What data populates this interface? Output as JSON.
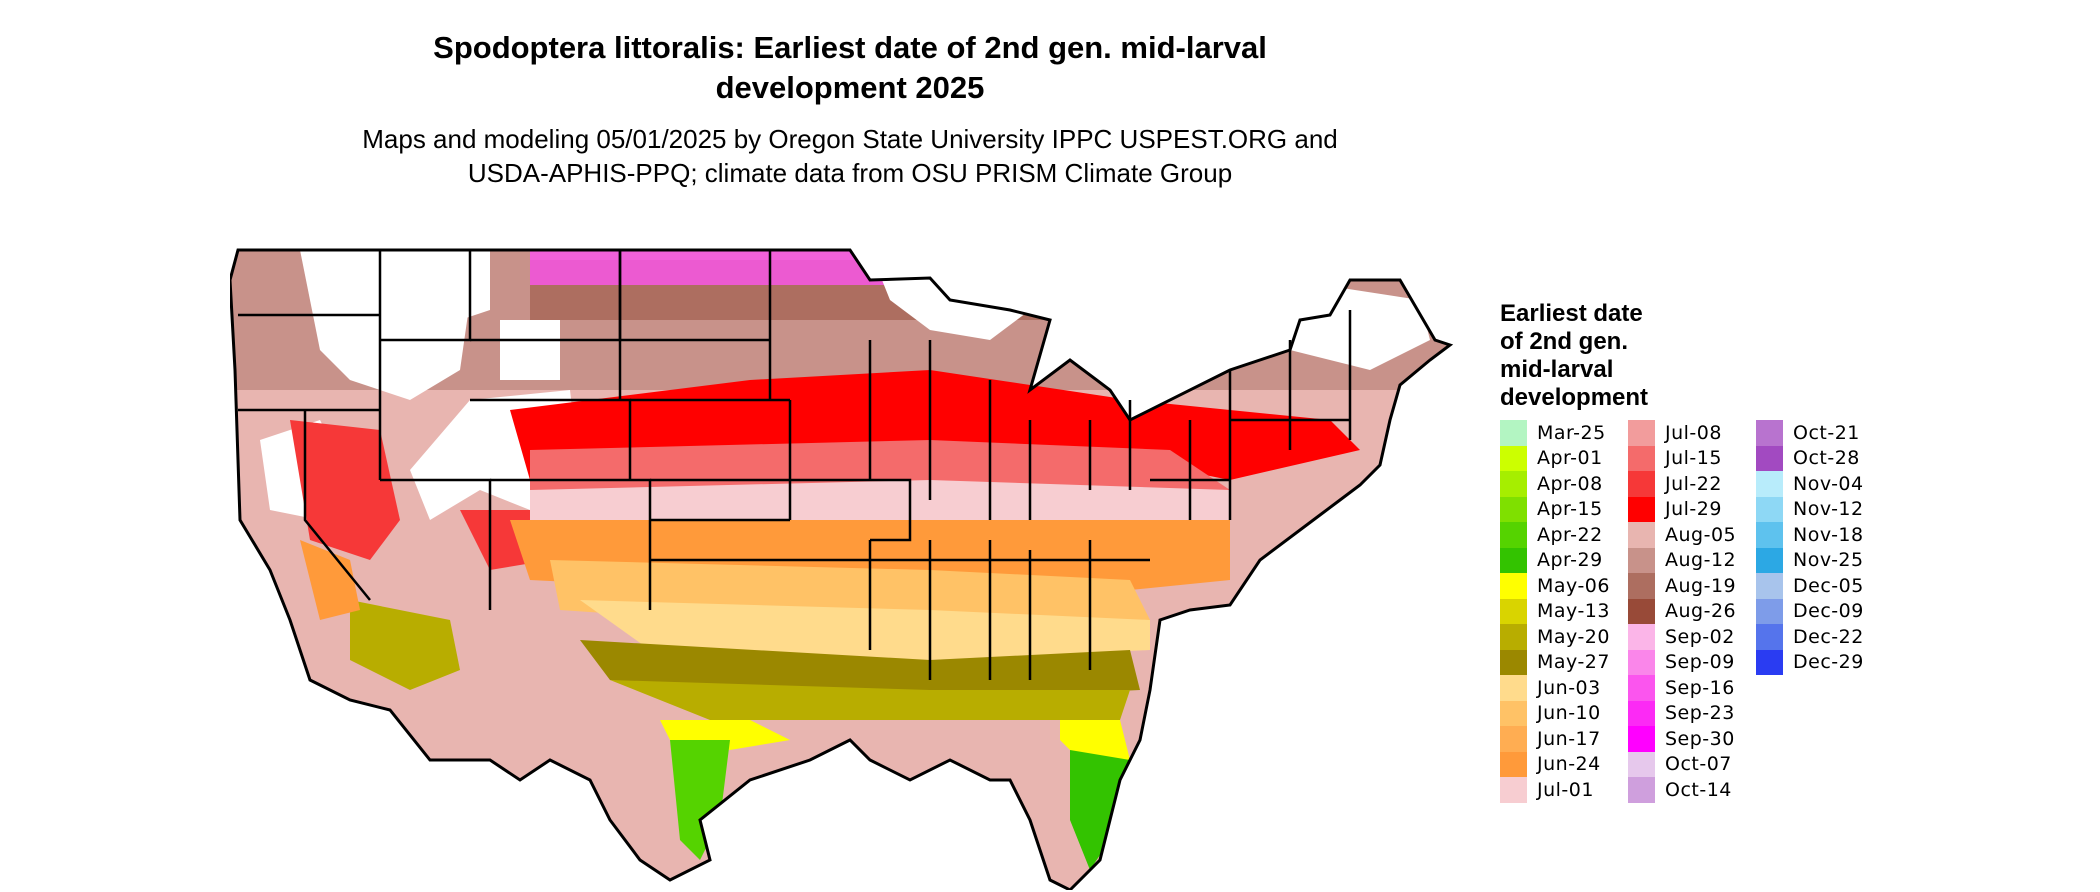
{
  "title": "Spodoptera littoralis: Earliest date of 2nd gen. mid-larval\ndevelopment 2025",
  "subtitle": "Maps and modeling 05/01/2025 by Oregon State University IPPC USPEST.ORG and\nUSDA-APHIS-PPQ; climate data from OSU PRISM Climate Group",
  "legend": {
    "title": "Earliest date\nof 2nd gen.\nmid-larval\ndevelopment",
    "items": [
      {
        "label": "Mar-25",
        "color": "#b3f5c2"
      },
      {
        "label": "Apr-01",
        "color": "#ccff00"
      },
      {
        "label": "Apr-08",
        "color": "#a6ee00"
      },
      {
        "label": "Apr-15",
        "color": "#7fe000"
      },
      {
        "label": "Apr-22",
        "color": "#55d300"
      },
      {
        "label": "Apr-29",
        "color": "#33c300"
      },
      {
        "label": "May-06",
        "color": "#ffff00"
      },
      {
        "label": "May-13",
        "color": "#d9d400"
      },
      {
        "label": "May-20",
        "color": "#b8ad00"
      },
      {
        "label": "May-27",
        "color": "#9b8800"
      },
      {
        "label": "Jun-03",
        "color": "#ffdb8c"
      },
      {
        "label": "Jun-10",
        "color": "#ffc266"
      },
      {
        "label": "Jun-17",
        "color": "#ffad52"
      },
      {
        "label": "Jun-24",
        "color": "#ff9a3a"
      },
      {
        "label": "Jul-01",
        "color": "#f7cdd1"
      },
      {
        "label": "Jul-08",
        "color": "#f29c9c"
      },
      {
        "label": "Jul-15",
        "color": "#f46b6b"
      },
      {
        "label": "Jul-22",
        "color": "#f63838"
      },
      {
        "label": "Jul-29",
        "color": "#ff0000"
      },
      {
        "label": "Aug-05",
        "color": "#e8b5b0"
      },
      {
        "label": "Aug-12",
        "color": "#c8928a"
      },
      {
        "label": "Aug-19",
        "color": "#ad6e60"
      },
      {
        "label": "Aug-26",
        "color": "#984a38"
      },
      {
        "label": "Sep-02",
        "color": "#fbb5e8"
      },
      {
        "label": "Sep-09",
        "color": "#fa86ea"
      },
      {
        "label": "Sep-16",
        "color": "#fb55ee"
      },
      {
        "label": "Sep-23",
        "color": "#fc2af5"
      },
      {
        "label": "Sep-30",
        "color": "#ff00ff"
      },
      {
        "label": "Oct-07",
        "color": "#e6c8ec"
      },
      {
        "label": "Oct-14",
        "color": "#cf9fdd"
      },
      {
        "label": "Oct-21",
        "color": "#b873cf"
      },
      {
        "label": "Oct-28",
        "color": "#a24ac1"
      },
      {
        "label": "Nov-04",
        "color": "#b8ecfb"
      },
      {
        "label": "Nov-12",
        "color": "#8ed8f5"
      },
      {
        "label": "Nov-18",
        "color": "#5ec2ee"
      },
      {
        "label": "Nov-25",
        "color": "#2ca8e4"
      },
      {
        "label": "Dec-05",
        "color": "#a8c4ec"
      },
      {
        "label": "Dec-09",
        "color": "#7e9ce9"
      },
      {
        "label": "Dec-22",
        "color": "#5574ec"
      },
      {
        "label": "Dec-29",
        "color": "#2a3cf2"
      }
    ]
  },
  "map": {
    "outline_color": "#000000",
    "no_data_color": "#ffffff"
  }
}
